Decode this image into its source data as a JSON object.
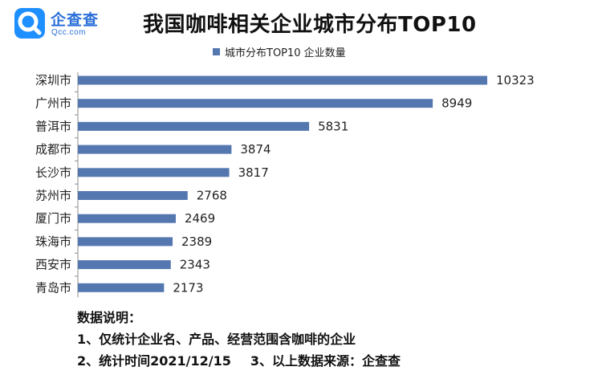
{
  "logo": {
    "name_cn": "企查查",
    "name_en": "Qcc.com"
  },
  "chart_data": {
    "type": "bar",
    "orientation": "horizontal",
    "title": "我国咖啡相关企业城市分布TOP10",
    "categories": [
      "深圳市",
      "广州市",
      "普洱市",
      "成都市",
      "长沙市",
      "苏州市",
      "厦门市",
      "珠海市",
      "西安市",
      "青岛市"
    ],
    "series": [
      {
        "name": "城市分布TOP10 企业数量",
        "values": [
          10323,
          8949,
          5831,
          3874,
          3817,
          2768,
          2469,
          2389,
          2343,
          2173
        ]
      }
    ],
    "xlim": [
      0,
      10323
    ],
    "grid": false,
    "legend": "top",
    "bar_color": "#5577b0",
    "data_labels": true
  },
  "notes": {
    "heading": "数据说明：",
    "line1": "1、仅统计企业名、产品、经营范围含咖啡的企业",
    "line2a": "2、统计时间2021/12/15",
    "line2b": "3、以上数据来源：企查查"
  }
}
